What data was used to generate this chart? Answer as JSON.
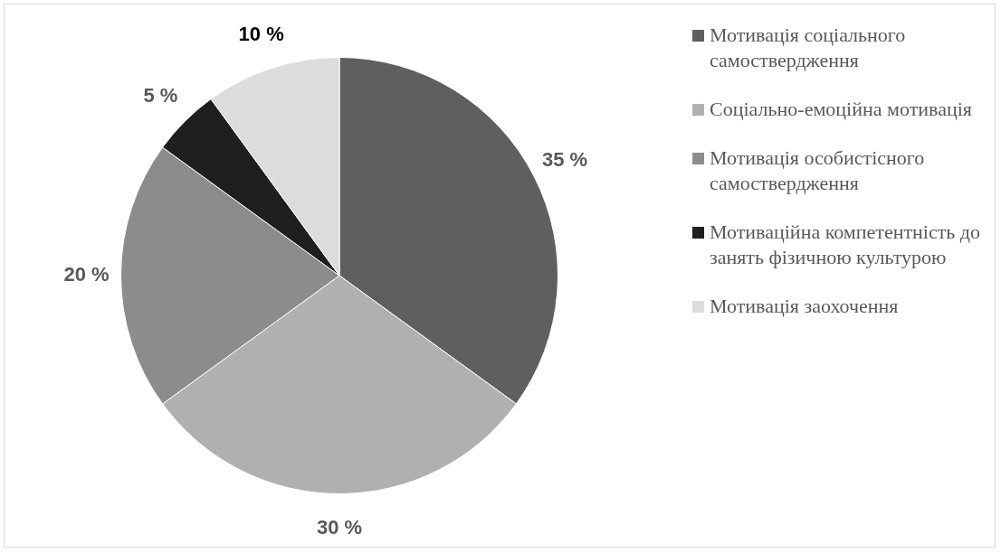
{
  "chart_data": {
    "type": "pie",
    "categories": [
      "Мотивація соціального самоствердження",
      "Соціально-емоційна мотивація",
      "Мотивація особистісного самоствердження",
      "Мотиваційна компетентність до занять фізичною культурою",
      "Мотивація заохочення"
    ],
    "values": [
      35,
      30,
      20,
      5,
      10
    ],
    "colors": [
      "#5f5f5f",
      "#b0b0b0",
      "#8c8c8c",
      "#1f1f1f",
      "#dcdcdc"
    ],
    "value_labels": [
      "35 %",
      "30 %",
      "20 %",
      "5 %",
      "10 %"
    ],
    "legend": "right"
  }
}
